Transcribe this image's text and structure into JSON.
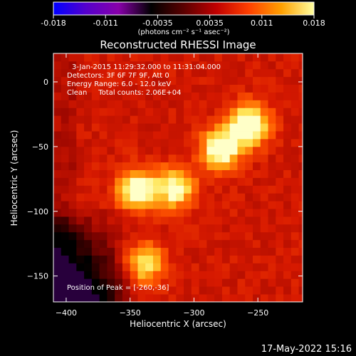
{
  "chart_data": {
    "type": "heatmap",
    "title": "Reconstructed RHESSI Image",
    "xlabel": "Heliocentric X (arcsec)",
    "ylabel": "Heliocentric Y (arcsec)",
    "xlim": [
      -410,
      -215
    ],
    "ylim": [
      -170,
      22
    ],
    "xticks": [
      -400,
      -350,
      -300,
      -250
    ],
    "yticks": [
      0,
      -50,
      -100,
      -150
    ],
    "colorbar": {
      "ticks": [
        "-0.018",
        "-0.011",
        "-0.0035",
        "0.0035",
        "0.011",
        "0.018"
      ],
      "range": [
        -0.018,
        0.018
      ],
      "units": "(photons cm⁻² s⁻¹ asec⁻²)",
      "colormap": [
        "#0000ff",
        "#5500cc",
        "#8800aa",
        "#000000",
        "#5a0000",
        "#c00000",
        "#ff4000",
        "#ffa000",
        "#ffffa0"
      ]
    },
    "sources": [
      {
        "x": -260,
        "y": -36,
        "peak": 0.018
      },
      {
        "x": -282,
        "y": -55,
        "peak": 0.0165
      },
      {
        "x": -348,
        "y": -86,
        "peak": 0.016
      },
      {
        "x": -318,
        "y": -85,
        "peak": 0.0145
      },
      {
        "x": -342,
        "y": -143,
        "peak": 0.0125
      }
    ],
    "annotations": [
      "3-Jan-2015 11:29:32.000 to 11:31:04.000",
      "Detectors: 3F 6F 7F 9F, Att 0",
      "Energy Range: 6.0 - 12.0 keV",
      "Clean     Total counts: 2.06E+04",
      "Position of Peak = [-260,-36]"
    ],
    "timestamp": "17-May-2022 15:16"
  }
}
